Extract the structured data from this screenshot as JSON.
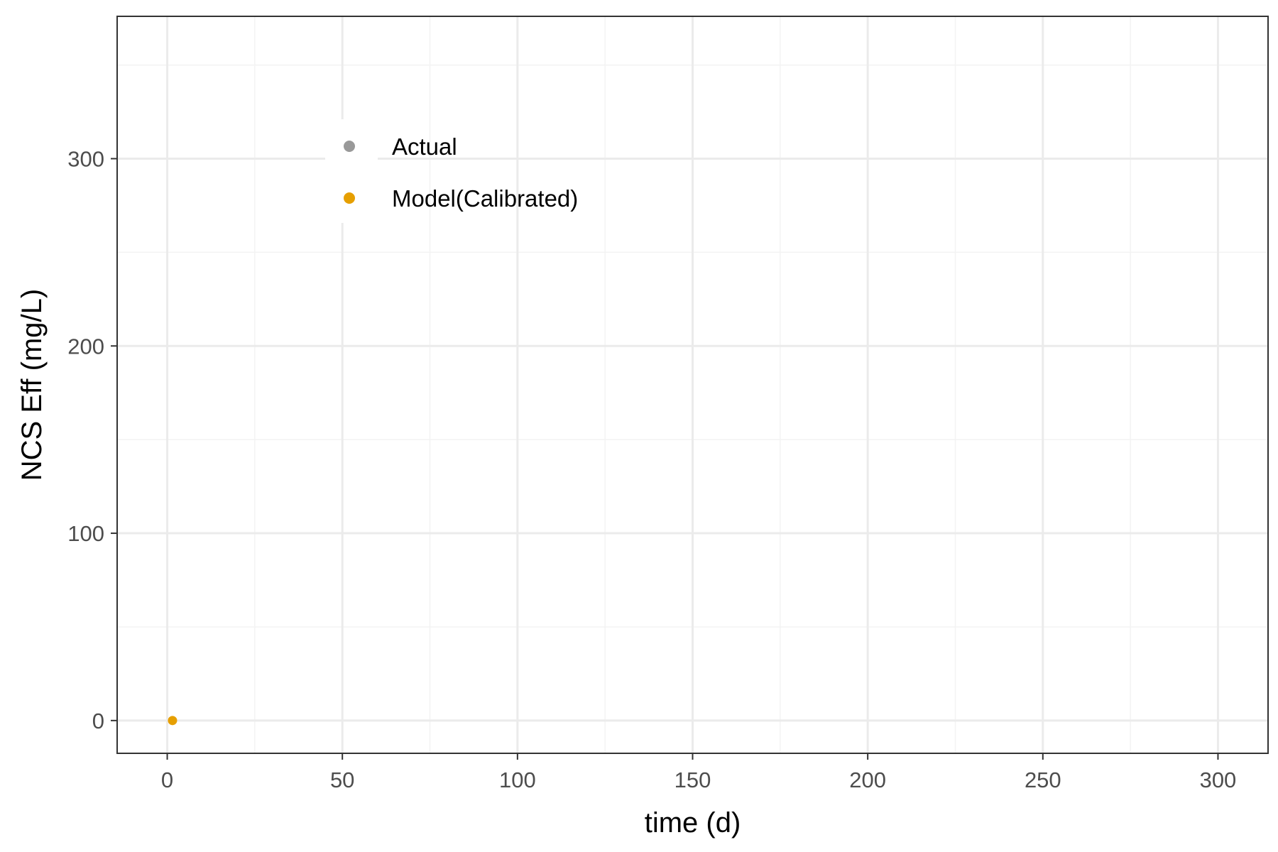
{
  "chart_data": {
    "type": "scatter",
    "xlabel": "time (d)",
    "ylabel": "NCS Eff (mg/L)",
    "xlim": [
      -14.3,
      314.3
    ],
    "ylim": [
      -17.5,
      376
    ],
    "x_ticks": [
      0,
      50,
      100,
      150,
      200,
      250,
      300
    ],
    "x_tick_labels": [
      "0",
      "50",
      "100",
      "150",
      "200",
      "250",
      "300"
    ],
    "y_ticks": [
      0,
      100,
      200,
      300
    ],
    "y_tick_labels": [
      "0",
      "100",
      "200",
      "300"
    ],
    "grid": true,
    "legend_position": "top-left (inside)",
    "series": [
      {
        "name": "Actual",
        "color": "#999999",
        "points": []
      },
      {
        "name": "Model(Calibrated)",
        "color": "#E69F00",
        "points": [
          [
            1.5,
            0
          ]
        ]
      }
    ]
  },
  "colors": {
    "panel_border": "#333333",
    "grid_major": "#ebebeb",
    "grid_minor": "#f3f3f3",
    "tick_text": "#4d4d4d"
  }
}
